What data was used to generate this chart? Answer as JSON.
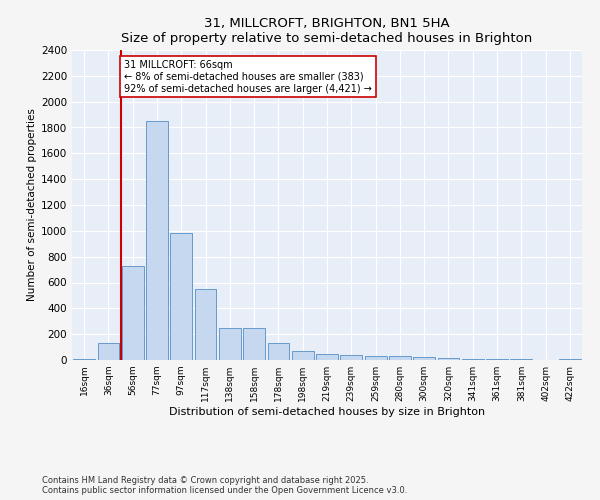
{
  "title": "31, MILLCROFT, BRIGHTON, BN1 5HA",
  "subtitle": "Size of property relative to semi-detached houses in Brighton",
  "xlabel": "Distribution of semi-detached houses by size in Brighton",
  "ylabel": "Number of semi-detached properties",
  "bar_labels": [
    "16sqm",
    "36sqm",
    "56sqm",
    "77sqm",
    "97sqm",
    "117sqm",
    "138sqm",
    "158sqm",
    "178sqm",
    "198sqm",
    "219sqm",
    "239sqm",
    "259sqm",
    "280sqm",
    "300sqm",
    "320sqm",
    "341sqm",
    "361sqm",
    "381sqm",
    "402sqm",
    "422sqm"
  ],
  "bar_values": [
    10,
    130,
    730,
    1850,
    980,
    550,
    245,
    245,
    130,
    70,
    50,
    35,
    30,
    28,
    20,
    15,
    10,
    8,
    5,
    3,
    5
  ],
  "bar_color": "#c5d8f0",
  "bar_edge_color": "#6699cc",
  "ylim": [
    0,
    2400
  ],
  "yticks": [
    0,
    200,
    400,
    600,
    800,
    1000,
    1200,
    1400,
    1600,
    1800,
    2000,
    2200,
    2400
  ],
  "vline_color": "#cc0000",
  "annotation_text": "31 MILLCROFT: 66sqm\n← 8% of semi-detached houses are smaller (383)\n92% of semi-detached houses are larger (4,421) →",
  "bg_color": "#e8eef8",
  "grid_color": "#ffffff",
  "fig_bg_color": "#f5f5f5",
  "footer1": "Contains HM Land Registry data © Crown copyright and database right 2025.",
  "footer2": "Contains public sector information licensed under the Open Government Licence v3.0."
}
